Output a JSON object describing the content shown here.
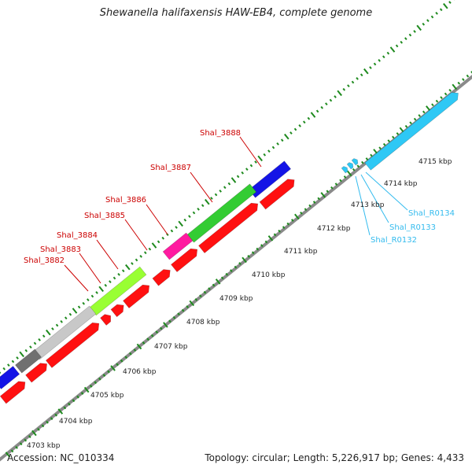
{
  "title": "Shewanella halifaxensis HAW-EB4, complete genome",
  "footer": {
    "accession": "Accession: NC_010334",
    "summary": "Topology: circular; Length: 5,226,917 bp; Genes: 4,433"
  },
  "colors": {
    "backbone": "#8a8a8a",
    "ruler": "#1e8a1e",
    "cds_red": "#ff1010",
    "blue": "#1414e6",
    "green": "#33cc33",
    "lime": "#99ff33",
    "magenta": "#ff1aa0",
    "grey_light": "#c8c8c8",
    "grey_dark": "#707070",
    "rna_cyan": "#2ec8f5",
    "label_red": "#cc0000",
    "label_cyan": "#33bbee"
  },
  "ruler_labels": [
    "4703 kbp",
    "4704 kbp",
    "4705 kbp",
    "4706 kbp",
    "4707 kbp",
    "4708 kbp",
    "4709 kbp",
    "4710 kbp",
    "4711 kbp",
    "4712 kbp",
    "4713 kbp",
    "4714 kbp",
    "4715 kbp"
  ],
  "gene_labels": [
    "Shal_3882",
    "Shal_3883",
    "Shal_3884",
    "Shal_3885",
    "Shal_3886",
    "Shal_3887",
    "Shal_3888"
  ],
  "rna_labels": [
    "Shal_R0132",
    "Shal_R0133",
    "Shal_R0134"
  ]
}
